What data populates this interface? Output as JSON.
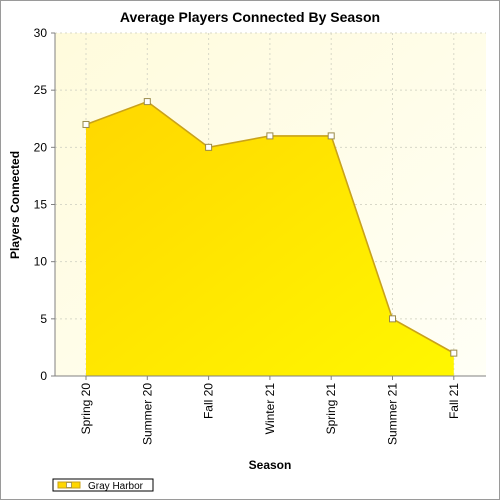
{
  "chart_data": {
    "type": "area",
    "title": "Average Players Connected By Season",
    "xlabel": "Season",
    "ylabel": "Players Connected",
    "categories": [
      "Spring 20",
      "Summer 20",
      "Fall 20",
      "Winter 21",
      "Spring 21",
      "Summer 21",
      "Fall 21"
    ],
    "series": [
      {
        "name": "Gray Harbor",
        "values": [
          22,
          24,
          20,
          21,
          21,
          5,
          2
        ]
      }
    ],
    "ylim": [
      0,
      30
    ],
    "yticks": [
      0,
      5,
      10,
      15,
      20,
      25,
      30
    ],
    "grid": true,
    "legend_position": "bottom-left",
    "colors": {
      "plot_bg_from": "#fffbdc",
      "plot_bg_to": "#fffff6",
      "area_top": "#ffd700",
      "area_bottom": "#fff700",
      "line": "#c9a21a",
      "marker_fill": "#ffffff",
      "marker_stroke": "#9a8a4a",
      "grid": "#d8d8c8"
    }
  }
}
